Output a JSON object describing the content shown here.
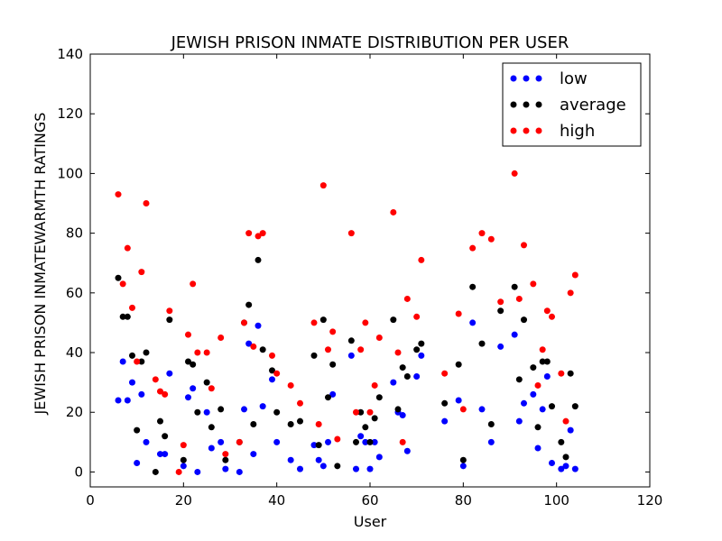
{
  "chart_data": {
    "type": "scatter",
    "title": "JEWISH PRISON INMATE DISTRIBUTION PER USER",
    "xlabel": "User",
    "ylabel": "JEWISH PRISON INMATEWARMTH RATINGS",
    "xlim": [
      0,
      120
    ],
    "ylim": [
      -5,
      140
    ],
    "xticks": [
      0,
      20,
      40,
      60,
      80,
      100,
      120
    ],
    "yticks": [
      0,
      20,
      40,
      60,
      80,
      100,
      120,
      140
    ],
    "grid": false,
    "legend_position": "top-right",
    "series": [
      {
        "name": "low",
        "color": "#0000ff",
        "points": [
          [
            6,
            24
          ],
          [
            7,
            37
          ],
          [
            8,
            24
          ],
          [
            9,
            30
          ],
          [
            10,
            3
          ],
          [
            11,
            26
          ],
          [
            12,
            10
          ],
          [
            15,
            6
          ],
          [
            16,
            6
          ],
          [
            17,
            33
          ],
          [
            20,
            2
          ],
          [
            21,
            25
          ],
          [
            22,
            28
          ],
          [
            23,
            0
          ],
          [
            25,
            20
          ],
          [
            26,
            8
          ],
          [
            28,
            10
          ],
          [
            29,
            1
          ],
          [
            32,
            0
          ],
          [
            33,
            21
          ],
          [
            34,
            43
          ],
          [
            35,
            6
          ],
          [
            36,
            49
          ],
          [
            37,
            22
          ],
          [
            39,
            31
          ],
          [
            40,
            10
          ],
          [
            43,
            4
          ],
          [
            45,
            1
          ],
          [
            48,
            9
          ],
          [
            49,
            4
          ],
          [
            50,
            2
          ],
          [
            51,
            10
          ],
          [
            52,
            26
          ],
          [
            56,
            39
          ],
          [
            57,
            1
          ],
          [
            58,
            12
          ],
          [
            59,
            10
          ],
          [
            60,
            1
          ],
          [
            61,
            10
          ],
          [
            62,
            5
          ],
          [
            65,
            30
          ],
          [
            66,
            20
          ],
          [
            67,
            19
          ],
          [
            68,
            7
          ],
          [
            70,
            32
          ],
          [
            71,
            39
          ],
          [
            76,
            17
          ],
          [
            79,
            24
          ],
          [
            80,
            2
          ],
          [
            82,
            50
          ],
          [
            84,
            21
          ],
          [
            86,
            10
          ],
          [
            88,
            42
          ],
          [
            91,
            46
          ],
          [
            92,
            17
          ],
          [
            93,
            23
          ],
          [
            95,
            26
          ],
          [
            96,
            8
          ],
          [
            97,
            21
          ],
          [
            98,
            32
          ],
          [
            99,
            3
          ],
          [
            101,
            1
          ],
          [
            102,
            2
          ],
          [
            103,
            14
          ],
          [
            104,
            1
          ]
        ]
      },
      {
        "name": "average",
        "color": "#000000",
        "points": [
          [
            6,
            65
          ],
          [
            7,
            52
          ],
          [
            8,
            52
          ],
          [
            9,
            39
          ],
          [
            10,
            14
          ],
          [
            11,
            37
          ],
          [
            12,
            40
          ],
          [
            14,
            0
          ],
          [
            15,
            17
          ],
          [
            16,
            12
          ],
          [
            17,
            51
          ],
          [
            20,
            4
          ],
          [
            21,
            37
          ],
          [
            22,
            36
          ],
          [
            23,
            20
          ],
          [
            25,
            30
          ],
          [
            26,
            15
          ],
          [
            28,
            21
          ],
          [
            29,
            4
          ],
          [
            32,
            10
          ],
          [
            33,
            50
          ],
          [
            34,
            56
          ],
          [
            35,
            16
          ],
          [
            36,
            71
          ],
          [
            37,
            41
          ],
          [
            39,
            34
          ],
          [
            40,
            20
          ],
          [
            43,
            16
          ],
          [
            45,
            17
          ],
          [
            48,
            39
          ],
          [
            49,
            9
          ],
          [
            50,
            51
          ],
          [
            51,
            25
          ],
          [
            52,
            36
          ],
          [
            53,
            2
          ],
          [
            56,
            44
          ],
          [
            57,
            10
          ],
          [
            58,
            20
          ],
          [
            59,
            15
          ],
          [
            60,
            10
          ],
          [
            61,
            18
          ],
          [
            62,
            25
          ],
          [
            65,
            51
          ],
          [
            66,
            21
          ],
          [
            67,
            35
          ],
          [
            68,
            32
          ],
          [
            70,
            41
          ],
          [
            71,
            43
          ],
          [
            76,
            23
          ],
          [
            79,
            36
          ],
          [
            80,
            4
          ],
          [
            82,
            62
          ],
          [
            84,
            43
          ],
          [
            86,
            16
          ],
          [
            88,
            54
          ],
          [
            91,
            62
          ],
          [
            92,
            31
          ],
          [
            93,
            51
          ],
          [
            95,
            35
          ],
          [
            96,
            15
          ],
          [
            97,
            37
          ],
          [
            98,
            37
          ],
          [
            99,
            22
          ],
          [
            101,
            10
          ],
          [
            102,
            5
          ],
          [
            103,
            33
          ],
          [
            104,
            22
          ]
        ]
      },
      {
        "name": "high",
        "color": "#ff0000",
        "points": [
          [
            6,
            93
          ],
          [
            7,
            63
          ],
          [
            8,
            75
          ],
          [
            9,
            55
          ],
          [
            10,
            37
          ],
          [
            11,
            67
          ],
          [
            12,
            90
          ],
          [
            14,
            31
          ],
          [
            15,
            27
          ],
          [
            16,
            26
          ],
          [
            17,
            54
          ],
          [
            19,
            0
          ],
          [
            20,
            9
          ],
          [
            21,
            46
          ],
          [
            22,
            63
          ],
          [
            23,
            40
          ],
          [
            25,
            40
          ],
          [
            26,
            28
          ],
          [
            28,
            45
          ],
          [
            29,
            6
          ],
          [
            32,
            10
          ],
          [
            33,
            50
          ],
          [
            34,
            80
          ],
          [
            35,
            42
          ],
          [
            36,
            79
          ],
          [
            37,
            80
          ],
          [
            39,
            39
          ],
          [
            40,
            33
          ],
          [
            43,
            29
          ],
          [
            45,
            23
          ],
          [
            48,
            50
          ],
          [
            49,
            16
          ],
          [
            50,
            96
          ],
          [
            51,
            41
          ],
          [
            52,
            47
          ],
          [
            53,
            11
          ],
          [
            56,
            80
          ],
          [
            57,
            20
          ],
          [
            58,
            41
          ],
          [
            59,
            50
          ],
          [
            60,
            20
          ],
          [
            61,
            29
          ],
          [
            62,
            45
          ],
          [
            65,
            87
          ],
          [
            66,
            40
          ],
          [
            67,
            10
          ],
          [
            68,
            58
          ],
          [
            70,
            52
          ],
          [
            71,
            71
          ],
          [
            76,
            33
          ],
          [
            79,
            53
          ],
          [
            80,
            21
          ],
          [
            82,
            75
          ],
          [
            84,
            80
          ],
          [
            86,
            78
          ],
          [
            88,
            57
          ],
          [
            91,
            100
          ],
          [
            92,
            58
          ],
          [
            93,
            76
          ],
          [
            95,
            63
          ],
          [
            96,
            29
          ],
          [
            97,
            41
          ],
          [
            98,
            54
          ],
          [
            99,
            52
          ],
          [
            101,
            33
          ],
          [
            102,
            17
          ],
          [
            103,
            60
          ],
          [
            104,
            66
          ]
        ]
      }
    ]
  }
}
